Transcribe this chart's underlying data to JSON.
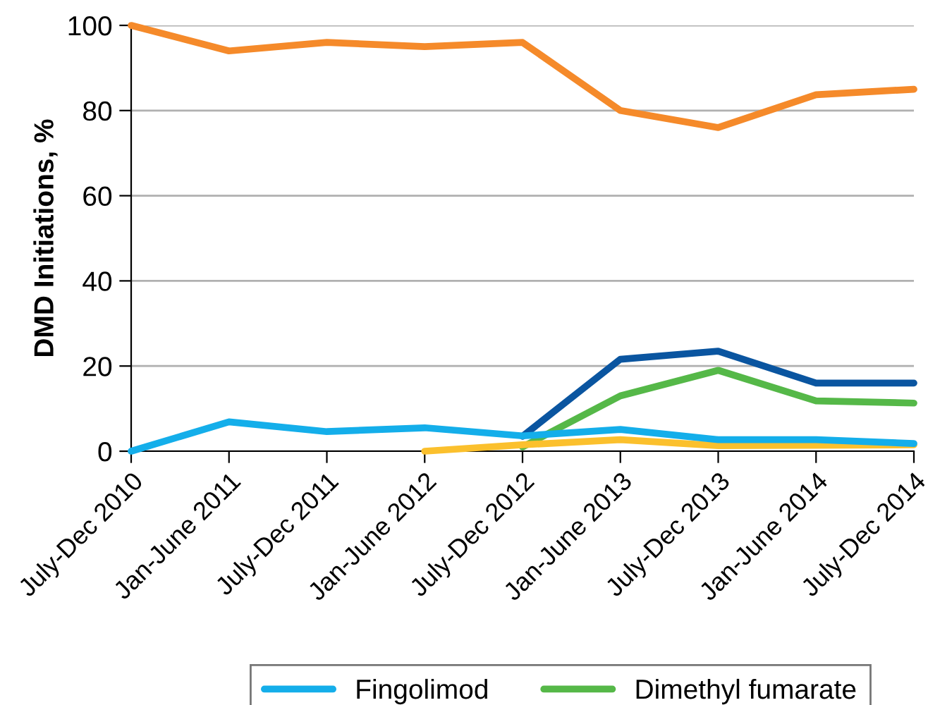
{
  "chart_data": {
    "type": "line",
    "ylabel": "DMD Initiations, %",
    "categories": [
      "July-Dec 2010",
      "Jan-June 2011",
      "July-Dec 2011",
      "Jan-June 2012",
      "July-Dec 2012",
      "Jan-June 2013",
      "July-Dec 2013",
      "Jan-June 2014",
      "July-Dec 2014"
    ],
    "series": [
      {
        "color": "#f58a2a",
        "values": [
          100,
          94,
          96,
          95,
          96,
          80,
          76,
          83.7,
          85
        ]
      },
      {
        "color": "#0a55a0",
        "values": [
          null,
          null,
          null,
          null,
          3.5,
          21.6,
          23.5,
          16,
          16
        ]
      },
      {
        "name": "Dimethyl fumarate",
        "color": "#55b848",
        "values": [
          null,
          null,
          null,
          null,
          1,
          13,
          19,
          11.8,
          11.3
        ]
      },
      {
        "color": "#fbc02d",
        "values": [
          null,
          null,
          null,
          0,
          1.5,
          2.7,
          1.3,
          1.4,
          1.5
        ]
      },
      {
        "name": "Fingolimod",
        "color": "#14aeea",
        "values": [
          0,
          6.9,
          4.6,
          5.5,
          3.6,
          5.1,
          2.7,
          2.7,
          1.8
        ]
      }
    ],
    "ylim": [
      0,
      100
    ],
    "yticks": [
      0,
      20,
      40,
      60,
      80,
      100
    ],
    "grid": "y",
    "legend": "bottom",
    "line_style": "solid",
    "marker": "none"
  }
}
